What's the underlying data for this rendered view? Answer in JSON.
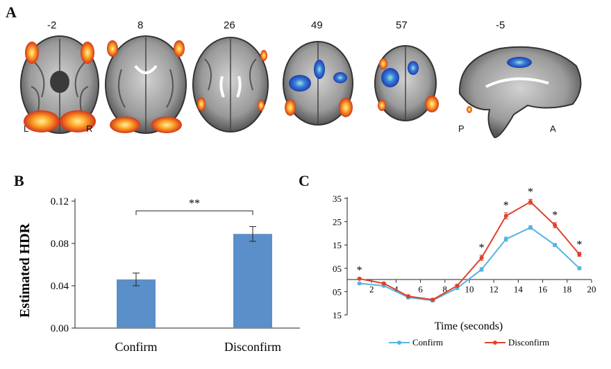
{
  "panel_a": {
    "letter": "A",
    "slice_labels": [
      "-2",
      "8",
      "26",
      "49",
      "57",
      "-5"
    ],
    "orientation": {
      "left": "L",
      "right": "R",
      "posterior": "P",
      "anterior": "A"
    },
    "colors": {
      "hot": "#e8501c",
      "cold": "#2a62d0"
    }
  },
  "panel_b": {
    "letter": "B",
    "sig": "**"
  },
  "panel_c": {
    "letter": "C",
    "legend": {
      "confirm": "Confirm",
      "disconfirm": "Disconfirm"
    }
  },
  "chart_data": [
    {
      "type": "bar",
      "categories": [
        "Confirm",
        "Disconfirm"
      ],
      "values": [
        0.046,
        0.089
      ],
      "errors": [
        0.006,
        0.007
      ],
      "ylabel": "Estimated HDR",
      "ylim": [
        0,
        0.12
      ],
      "yticks": [
        "0.00",
        "0.04",
        "0.08",
        "0.12"
      ],
      "color": "#5b8fc9",
      "annotation": "**"
    },
    {
      "type": "line",
      "xlabel": "Time  (seconds)",
      "xlim": [
        0,
        20
      ],
      "xticks": [
        "2",
        "4",
        "6",
        "8",
        "10",
        "12",
        "14",
        "16",
        "18",
        "20"
      ],
      "ytick_labels": [
        "35",
        "25",
        "15",
        "05",
        "05",
        "15"
      ],
      "ytick_values": [
        35,
        25,
        15,
        5,
        -5,
        -15
      ],
      "ylim": [
        -15,
        35
      ],
      "x": [
        1,
        3,
        5,
        7,
        9,
        11,
        13,
        15,
        17,
        19
      ],
      "series": [
        {
          "name": "Confirm",
          "color": "#55b4e0",
          "values": [
            -1.5,
            -2.5,
            -7.5,
            -8.8,
            -3.5,
            4.5,
            17.5,
            22.5,
            15.0,
            5.0
          ],
          "errors": [
            0.4,
            0.4,
            0.6,
            0.6,
            0.5,
            0.8,
            0.9,
            0.8,
            0.7,
            0.6
          ]
        },
        {
          "name": "Disconfirm",
          "color": "#e0402a",
          "values": [
            0.5,
            -1.5,
            -7.0,
            -8.5,
            -2.5,
            9.5,
            27.5,
            33.5,
            23.5,
            11.0
          ],
          "errors": [
            0.4,
            0.4,
            0.6,
            0.6,
            0.6,
            1.1,
            1.3,
            1.1,
            1.1,
            0.9
          ]
        }
      ],
      "sig_x": [
        1,
        11,
        13,
        15,
        17,
        19
      ],
      "sig_label": "*"
    }
  ]
}
